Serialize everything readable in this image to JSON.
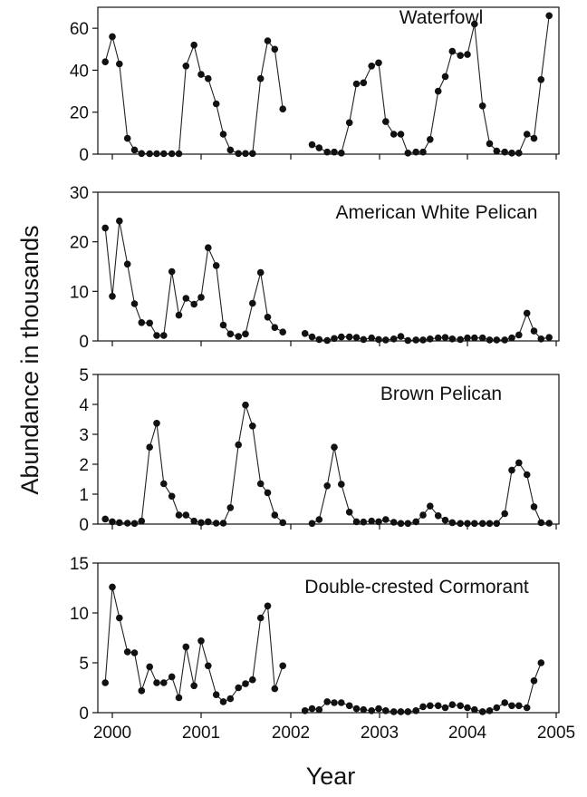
{
  "chart_data": {
    "type": "line",
    "xlabel": "Year",
    "ylabel": "Abundance in thousands",
    "x_ticks": [
      "2000",
      "2001",
      "2002",
      "2003",
      "2004",
      "2005"
    ],
    "xlim": [
      1999.85,
      2004.95
    ],
    "panels": [
      {
        "title": "Waterfowl",
        "ylim": [
          0,
          70
        ],
        "y_ticks": [
          "0",
          "20",
          "40",
          "60"
        ],
        "y_tick_values": [
          0,
          20,
          40,
          60
        ],
        "points": [
          [
            1999.92,
            44
          ],
          [
            2000.0,
            56
          ],
          [
            2000.08,
            43
          ],
          [
            2000.17,
            7.5
          ],
          [
            2000.25,
            2
          ],
          [
            2000.33,
            0.3
          ],
          [
            2000.42,
            0.2
          ],
          [
            2000.5,
            0.2
          ],
          [
            2000.58,
            0.2
          ],
          [
            2000.67,
            0.2
          ],
          [
            2000.75,
            0.2
          ],
          [
            2000.83,
            42
          ],
          [
            2000.92,
            52
          ],
          [
            2001.0,
            38
          ],
          [
            2001.08,
            36
          ],
          [
            2001.17,
            24
          ],
          [
            2001.25,
            9.5
          ],
          [
            2001.33,
            2
          ],
          [
            2001.42,
            0.3
          ],
          [
            2001.5,
            0.3
          ],
          [
            2001.58,
            0.3
          ],
          [
            2001.67,
            36
          ],
          [
            2001.75,
            54
          ],
          [
            2001.83,
            50
          ],
          [
            2001.92,
            21.5
          ],
          null,
          [
            2002.25,
            4.5
          ],
          [
            2002.33,
            3
          ],
          [
            2002.42,
            1
          ],
          [
            2002.5,
            1
          ],
          [
            2002.58,
            0.5
          ],
          [
            2002.67,
            15
          ],
          [
            2002.75,
            33.5
          ],
          [
            2002.83,
            34
          ],
          [
            2002.92,
            42
          ],
          [
            2003.0,
            43.5
          ],
          [
            2003.08,
            15.5
          ],
          [
            2003.17,
            9.5
          ],
          [
            2003.25,
            9.5
          ],
          [
            2003.33,
            0.5
          ],
          [
            2003.42,
            1
          ],
          [
            2003.5,
            1
          ],
          [
            2003.58,
            7
          ],
          [
            2003.67,
            30
          ],
          [
            2003.75,
            37
          ],
          [
            2003.83,
            49
          ],
          [
            2003.92,
            47
          ],
          [
            2004.0,
            47.5
          ],
          [
            2004.08,
            62
          ],
          [
            2004.17,
            23
          ],
          [
            2004.25,
            5
          ],
          [
            2004.33,
            1.5
          ],
          [
            2004.42,
            1
          ],
          [
            2004.5,
            0.5
          ],
          [
            2004.58,
            0.5
          ],
          [
            2004.67,
            9.5
          ],
          [
            2004.75,
            7.5
          ],
          [
            2004.83,
            35.5
          ],
          [
            2004.92,
            66
          ]
        ]
      },
      {
        "title": "American White Pelican",
        "ylim": [
          0,
          30
        ],
        "y_ticks": [
          "0",
          "10",
          "20",
          "30"
        ],
        "y_tick_values": [
          0,
          10,
          20,
          30
        ],
        "points": [
          [
            1999.92,
            22.8
          ],
          [
            2000.0,
            9
          ],
          [
            2000.08,
            24.2
          ],
          [
            2000.17,
            15.5
          ],
          [
            2000.25,
            7.5
          ],
          [
            2000.33,
            3.7
          ],
          [
            2000.42,
            3.6
          ],
          [
            2000.5,
            1.1
          ],
          [
            2000.58,
            1.1
          ],
          [
            2000.67,
            14
          ],
          [
            2000.75,
            5.2
          ],
          [
            2000.83,
            8.6
          ],
          [
            2000.92,
            7.4
          ],
          [
            2001.0,
            8.8
          ],
          [
            2001.08,
            18.8
          ],
          [
            2001.17,
            15.2
          ],
          [
            2001.25,
            3.2
          ],
          [
            2001.33,
            1.4
          ],
          [
            2001.42,
            0.9
          ],
          [
            2001.5,
            1.4
          ],
          [
            2001.58,
            7.6
          ],
          [
            2001.67,
            13.8
          ],
          [
            2001.75,
            4.8
          ],
          [
            2001.83,
            2.7
          ],
          [
            2001.92,
            1.8
          ],
          null,
          [
            2002.17,
            1.5
          ],
          [
            2002.25,
            0.8
          ],
          [
            2002.33,
            0.3
          ],
          [
            2002.42,
            0.1
          ],
          [
            2002.5,
            0.5
          ],
          [
            2002.58,
            0.8
          ],
          [
            2002.67,
            0.8
          ],
          [
            2002.75,
            0.7
          ],
          [
            2002.83,
            0.3
          ],
          [
            2002.92,
            0.6
          ],
          [
            2003.0,
            0.3
          ],
          [
            2003.08,
            0.2
          ],
          [
            2003.17,
            0.4
          ],
          [
            2003.25,
            0.9
          ],
          [
            2003.33,
            0.1
          ],
          [
            2003.42,
            0.2
          ],
          [
            2003.5,
            0.2
          ],
          [
            2003.58,
            0.4
          ],
          [
            2003.67,
            0.6
          ],
          [
            2003.75,
            0.7
          ],
          [
            2003.83,
            0.4
          ],
          [
            2003.92,
            0.3
          ],
          [
            2004.0,
            0.6
          ],
          [
            2004.08,
            0.6
          ],
          [
            2004.17,
            0.6
          ],
          [
            2004.25,
            0.2
          ],
          [
            2004.33,
            0.2
          ],
          [
            2004.42,
            0.2
          ],
          [
            2004.5,
            0.6
          ],
          [
            2004.58,
            1.2
          ],
          [
            2004.67,
            5.6
          ],
          [
            2004.75,
            2
          ],
          [
            2004.83,
            0.4
          ],
          [
            2004.92,
            0.7
          ]
        ]
      },
      {
        "title": "Brown Pelican",
        "ylim": [
          0,
          5
        ],
        "y_ticks": [
          "0",
          "1",
          "2",
          "3",
          "4",
          "5"
        ],
        "y_tick_values": [
          0,
          1,
          2,
          3,
          4,
          5
        ],
        "points": [
          [
            1999.92,
            0.17
          ],
          [
            2000.0,
            0.08
          ],
          [
            2000.08,
            0.05
          ],
          [
            2000.17,
            0.03
          ],
          [
            2000.25,
            0.02
          ],
          [
            2000.33,
            0.1
          ],
          [
            2000.42,
            2.57
          ],
          [
            2000.5,
            3.37
          ],
          [
            2000.58,
            1.35
          ],
          [
            2000.67,
            0.93
          ],
          [
            2000.75,
            0.3
          ],
          [
            2000.83,
            0.3
          ],
          [
            2000.92,
            0.1
          ],
          [
            2001.0,
            0.05
          ],
          [
            2001.08,
            0.08
          ],
          [
            2001.17,
            0.03
          ],
          [
            2001.25,
            0.03
          ],
          [
            2001.33,
            0.55
          ],
          [
            2001.42,
            2.65
          ],
          [
            2001.5,
            3.98
          ],
          [
            2001.58,
            3.28
          ],
          [
            2001.67,
            1.35
          ],
          [
            2001.75,
            1.05
          ],
          [
            2001.83,
            0.3
          ],
          [
            2001.92,
            0.05
          ],
          null,
          [
            2002.25,
            0.02
          ],
          [
            2002.33,
            0.15
          ],
          [
            2002.42,
            1.28
          ],
          [
            2002.5,
            2.57
          ],
          [
            2002.58,
            1.33
          ],
          [
            2002.67,
            0.4
          ],
          [
            2002.75,
            0.08
          ],
          [
            2002.83,
            0.07
          ],
          [
            2002.92,
            0.1
          ],
          [
            2003.0,
            0.08
          ],
          [
            2003.08,
            0.15
          ],
          [
            2003.17,
            0.06
          ],
          [
            2003.25,
            0.02
          ],
          [
            2003.33,
            0.02
          ],
          [
            2003.42,
            0.08
          ],
          [
            2003.5,
            0.3
          ],
          [
            2003.58,
            0.6
          ],
          [
            2003.67,
            0.28
          ],
          [
            2003.75,
            0.13
          ],
          [
            2003.83,
            0.05
          ],
          [
            2003.92,
            0.02
          ],
          [
            2004.0,
            0.02
          ],
          [
            2004.08,
            0.02
          ],
          [
            2004.17,
            0.02
          ],
          [
            2004.25,
            0.02
          ],
          [
            2004.33,
            0.02
          ],
          [
            2004.42,
            0.35
          ],
          [
            2004.5,
            1.8
          ],
          [
            2004.58,
            2.05
          ],
          [
            2004.67,
            1.65
          ],
          [
            2004.75,
            0.58
          ],
          [
            2004.83,
            0.05
          ],
          [
            2004.92,
            0.03
          ]
        ]
      },
      {
        "title": "Double-crested Cormorant",
        "ylim": [
          0,
          15
        ],
        "y_ticks": [
          "0",
          "5",
          "10",
          "15"
        ],
        "y_tick_values": [
          0,
          5,
          10,
          15
        ],
        "points": [
          [
            1999.92,
            3
          ],
          [
            2000.0,
            12.6
          ],
          [
            2000.08,
            9.5
          ],
          [
            2000.17,
            6.1
          ],
          [
            2000.25,
            6
          ],
          [
            2000.33,
            2.2
          ],
          [
            2000.42,
            4.6
          ],
          [
            2000.5,
            3
          ],
          [
            2000.58,
            3
          ],
          [
            2000.67,
            3.6
          ],
          [
            2000.75,
            1.5
          ],
          [
            2000.83,
            6.6
          ],
          [
            2000.92,
            2.7
          ],
          [
            2001.0,
            7.2
          ],
          [
            2001.08,
            4.7
          ],
          [
            2001.17,
            1.8
          ],
          [
            2001.25,
            1.1
          ],
          [
            2001.33,
            1.4
          ],
          [
            2001.42,
            2.5
          ],
          [
            2001.5,
            2.9
          ],
          [
            2001.58,
            3.3
          ],
          [
            2001.67,
            9.5
          ],
          [
            2001.75,
            10.7
          ],
          [
            2001.83,
            2.4
          ],
          [
            2001.92,
            4.7
          ],
          null,
          [
            2002.17,
            0.2
          ],
          [
            2002.25,
            0.4
          ],
          [
            2002.33,
            0.3
          ],
          [
            2002.42,
            1.1
          ],
          [
            2002.5,
            1
          ],
          [
            2002.58,
            1
          ],
          [
            2002.67,
            0.7
          ],
          [
            2002.75,
            0.4
          ],
          [
            2002.83,
            0.3
          ],
          [
            2002.92,
            0.2
          ],
          [
            2003.0,
            0.4
          ],
          [
            2003.08,
            0.2
          ],
          [
            2003.17,
            0.1
          ],
          [
            2003.25,
            0.1
          ],
          [
            2003.33,
            0.1
          ],
          [
            2003.42,
            0.2
          ],
          [
            2003.5,
            0.6
          ],
          [
            2003.58,
            0.7
          ],
          [
            2003.67,
            0.7
          ],
          [
            2003.75,
            0.5
          ],
          [
            2003.83,
            0.8
          ],
          [
            2003.92,
            0.7
          ],
          [
            2004.0,
            0.5
          ],
          [
            2004.08,
            0.3
          ],
          [
            2004.17,
            0.1
          ],
          [
            2004.25,
            0.2
          ],
          [
            2004.33,
            0.5
          ],
          [
            2004.42,
            1
          ],
          [
            2004.5,
            0.7
          ],
          [
            2004.58,
            0.7
          ],
          [
            2004.67,
            0.5
          ],
          [
            2004.75,
            3.2
          ],
          [
            2004.83,
            5
          ]
        ]
      }
    ]
  }
}
